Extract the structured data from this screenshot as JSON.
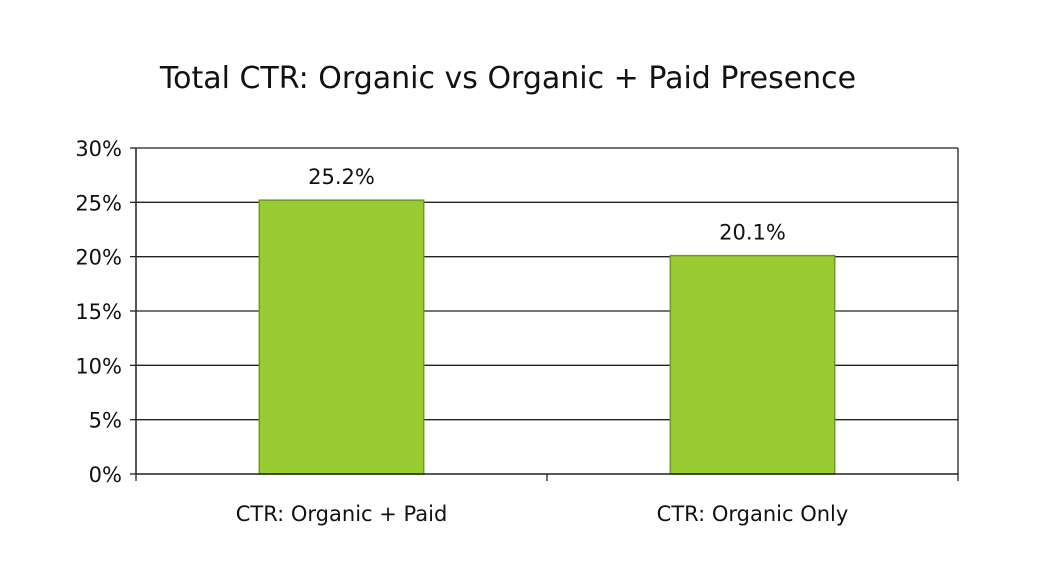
{
  "chart_data": {
    "type": "bar",
    "title": "Total CTR: Organic vs Organic + Paid Presence",
    "categories": [
      "CTR: Organic + Paid",
      "CTR: Organic Only"
    ],
    "values": [
      25.2,
      20.1
    ],
    "data_labels": [
      "25.2%",
      "20.1%"
    ],
    "xlabel": "",
    "ylabel": "",
    "ylim": [
      0,
      30
    ],
    "yticks": [
      0,
      5,
      10,
      15,
      20,
      25,
      30
    ],
    "ytick_labels": [
      "0%",
      "5%",
      "10%",
      "15%",
      "20%",
      "25%",
      "30%"
    ],
    "grid": true,
    "legend": "none",
    "bar_color": "#99cc33",
    "bar_edge_color": "#6f9a1f"
  }
}
